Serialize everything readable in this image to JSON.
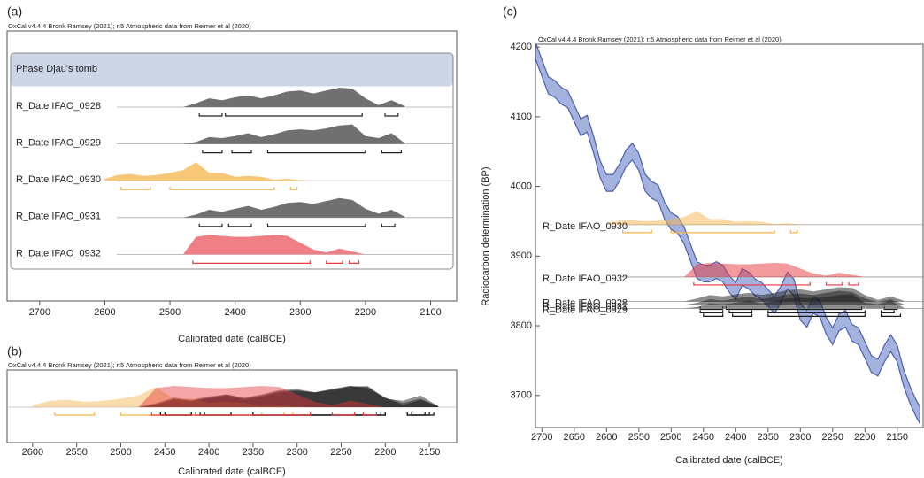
{
  "chart_data": [
    {
      "type": "multiplot",
      "panel": "(a)",
      "header": "OxCal v4.4.4 Bronk Ramsey (2021); r:5 Atmospheric data from Reimer et al (2020)",
      "phase": "Phase Djau's tomb",
      "x_label": "Calibrated date (calBCE)",
      "xlim": [
        2750,
        2060
      ],
      "xticks": [
        2700,
        2600,
        2500,
        2400,
        2300,
        2200,
        2100
      ],
      "x": [
        2600,
        2580,
        2560,
        2540,
        2520,
        2500,
        2480,
        2460,
        2440,
        2420,
        2400,
        2380,
        2360,
        2340,
        2320,
        2300,
        2280,
        2260,
        2240,
        2220,
        2200,
        2180,
        2160,
        2140
      ],
      "series": [
        {
          "name": "R_Date IFAO_0928",
          "color": "#707070",
          "range_color": "#222222",
          "values": [
            0,
            0,
            0,
            0,
            0,
            0,
            0,
            0.2,
            0.45,
            0.35,
            0.5,
            0.6,
            0.45,
            0.6,
            0.8,
            0.85,
            0.7,
            0.85,
            1,
            0.95,
            0.45,
            0.1,
            0.35,
            0.05
          ],
          "ranges": [
            [
              2455,
              2420
            ],
            [
              2415,
              2205
            ],
            [
              2170,
              2150
            ]
          ]
        },
        {
          "name": "R_Date IFAO_0929",
          "color": "#707070",
          "range_color": "#222222",
          "values": [
            0,
            0,
            0,
            0,
            0,
            0,
            0,
            0.1,
            0.35,
            0.3,
            0.4,
            0.55,
            0.35,
            0.5,
            0.7,
            0.75,
            0.7,
            0.8,
            0.95,
            1,
            0.4,
            0.3,
            0.55,
            0.05
          ],
          "ranges": [
            [
              2450,
              2420
            ],
            [
              2405,
              2375
            ],
            [
              2350,
              2200
            ],
            [
              2175,
              2145
            ]
          ]
        },
        {
          "name": "R_Date IFAO_0930",
          "color": "#f8c878",
          "range_color": "#f0a830",
          "values": [
            0.1,
            0.3,
            0.35,
            0.25,
            0.3,
            0.4,
            0.55,
            0.95,
            0.4,
            0.4,
            0.2,
            0.25,
            0.2,
            0.05,
            0.1,
            0.02,
            0,
            0,
            0,
            0,
            0,
            0,
            0,
            0
          ],
          "ranges": [
            [
              2575,
              2530
            ],
            [
              2500,
              2340
            ],
            [
              2315,
              2305
            ]
          ]
        },
        {
          "name": "R_Date IFAO_0931",
          "color": "#707070",
          "range_color": "#222222",
          "values": [
            0,
            0,
            0,
            0,
            0,
            0,
            0,
            0.15,
            0.4,
            0.3,
            0.45,
            0.6,
            0.4,
            0.55,
            0.75,
            0.8,
            0.7,
            0.85,
            1,
            0.9,
            0.45,
            0.2,
            0.4,
            0.05
          ],
          "ranges": [
            [
              2455,
              2420
            ],
            [
              2410,
              2375
            ],
            [
              2350,
              2200
            ],
            [
              2175,
              2155
            ]
          ]
        },
        {
          "name": "R_Date IFAO_0932",
          "color": "#ef7f84",
          "range_color": "#e04040",
          "values": [
            0,
            0,
            0,
            0,
            0,
            0,
            0,
            0.9,
            1,
            0.95,
            0.9,
            0.9,
            0.95,
            1,
            0.95,
            0.6,
            0.25,
            0.1,
            0.3,
            0.15,
            0,
            0,
            0,
            0
          ],
          "ranges": [
            [
              2465,
              2285
            ],
            [
              2260,
              2235
            ],
            [
              2225,
              2210
            ]
          ]
        }
      ]
    },
    {
      "type": "overlay",
      "panel": "(b)",
      "header": "OxCal v4.4.4 Bronk Ramsey (2021); r:5 Atmospheric data from Reimer et al (2020)",
      "x_label": "Calibrated date (calBCE)",
      "xlim": [
        2629,
        2119
      ],
      "xticks": [
        2600,
        2550,
        2500,
        2450,
        2400,
        2350,
        2300,
        2250,
        2200,
        2150
      ],
      "colors": [
        "#111111",
        "#111111",
        "#f5b44a",
        "#111111",
        "#e8363c"
      ]
    },
    {
      "type": "calibration",
      "panel": "(c)",
      "header": "OxCal v4.4.4 Bronk Ramsey (2021); r:5 Atmospheric data from Reimer et al (2020)",
      "x_label": "Calibrated date (calBCE)",
      "y_label": "Radiocarbon determination (BP)",
      "xlim": [
        2710,
        2110
      ],
      "xticks": [
        2700,
        2650,
        2600,
        2550,
        2500,
        2450,
        2400,
        2350,
        2300,
        2250,
        2200,
        2150
      ],
      "ylim": [
        3654,
        4204
      ],
      "yticks": [
        3700,
        3800,
        3900,
        4000,
        4100,
        4200
      ],
      "curve_color": "#4a5fb0",
      "band_color": "#a3b3de",
      "x": [
        2710,
        2700,
        2690,
        2680,
        2670,
        2660,
        2650,
        2640,
        2630,
        2620,
        2610,
        2600,
        2590,
        2580,
        2570,
        2560,
        2550,
        2540,
        2530,
        2520,
        2510,
        2500,
        2490,
        2480,
        2470,
        2460,
        2450,
        2440,
        2430,
        2420,
        2410,
        2400,
        2390,
        2380,
        2370,
        2360,
        2350,
        2340,
        2330,
        2320,
        2310,
        2300,
        2290,
        2280,
        2270,
        2260,
        2250,
        2240,
        2230,
        2220,
        2210,
        2200,
        2190,
        2180,
        2170,
        2160,
        2150,
        2140,
        2130,
        2120,
        2115
      ],
      "upper": [
        4207,
        4182,
        4157,
        4152,
        4142,
        4137,
        4117,
        4097,
        4102,
        4072,
        4037,
        4017,
        4017,
        4032,
        4052,
        4062,
        4047,
        4017,
        4007,
        4002,
        3977,
        3962,
        3957,
        3942,
        3917,
        3892,
        3887,
        3887,
        3892,
        3887,
        3872,
        3862,
        3882,
        3877,
        3867,
        3862,
        3852,
        3842,
        3857,
        3877,
        3867,
        3832,
        3822,
        3842,
        3837,
        3812,
        3797,
        3817,
        3822,
        3802,
        3797,
        3777,
        3757,
        3752,
        3772,
        3787,
        3772,
        3737,
        3712,
        3692,
        3684
      ],
      "lower": [
        4183,
        4158,
        4133,
        4128,
        4118,
        4113,
        4093,
        4073,
        4078,
        4048,
        4013,
        3993,
        3993,
        4008,
        4028,
        4038,
        4023,
        3993,
        3983,
        3978,
        3953,
        3938,
        3933,
        3918,
        3893,
        3868,
        3863,
        3863,
        3868,
        3863,
        3848,
        3838,
        3858,
        3853,
        3843,
        3838,
        3828,
        3818,
        3833,
        3853,
        3843,
        3808,
        3798,
        3818,
        3813,
        3788,
        3773,
        3793,
        3798,
        3778,
        3773,
        3753,
        3733,
        3728,
        3748,
        3763,
        3748,
        3713,
        3688,
        3668,
        3660
      ],
      "series": [
        {
          "name": "R_Date IFAO_0928",
          "bp": 3835,
          "color": "#1a1a1a"
        },
        {
          "name": "R_Date IFAO_0929",
          "bp": 3825,
          "color": "#1a1a1a"
        },
        {
          "name": "R_Date IFAO_0930",
          "bp": 3945,
          "color": "#f5b44a"
        },
        {
          "name": "R_Date IFAO_0931",
          "bp": 3830,
          "color": "#1a1a1a"
        },
        {
          "name": "R_Date IFAO_0932",
          "bp": 3870,
          "color": "#e8363c"
        }
      ]
    }
  ]
}
